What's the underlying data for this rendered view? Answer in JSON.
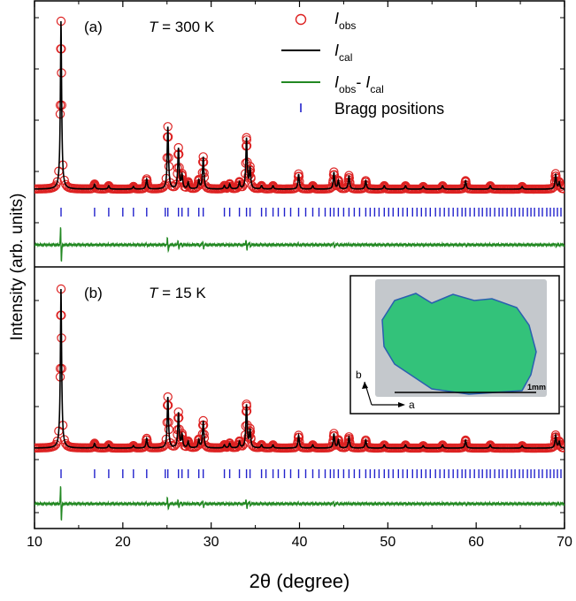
{
  "chart_data": {
    "type": "scatter",
    "xlabel": "2θ (degree)",
    "ylabel": "Intensity (arb. units)",
    "xlim": [
      10,
      70
    ],
    "x_ticks": [
      10,
      20,
      30,
      40,
      50,
      60,
      70
    ],
    "legend": {
      "placement": "top-right, panel (a)",
      "items": [
        {
          "key": "obs",
          "base": "I",
          "sub": "obs",
          "color": "#dd2222"
        },
        {
          "key": "cal",
          "base": "I",
          "sub": "cal",
          "color": "#000000"
        },
        {
          "key": "diff",
          "base": "I",
          "sub": "obs",
          "mid": "- ",
          "base2": "I",
          "sub2": "cal",
          "color": "#228822"
        },
        {
          "key": "bragg",
          "label": "Bragg positions",
          "color": "#2222cc"
        }
      ]
    },
    "panels": [
      {
        "id": "a",
        "tag": "(a)",
        "temp_var": "T",
        "temp_text": " = 300 K",
        "baseline": 1,
        "peaks": [
          [
            13.0,
            100
          ],
          [
            16.8,
            3
          ],
          [
            18.4,
            2
          ],
          [
            21.2,
            1.5
          ],
          [
            22.7,
            6
          ],
          [
            25.1,
            37
          ],
          [
            26.3,
            24
          ],
          [
            26.7,
            8
          ],
          [
            27.4,
            4
          ],
          [
            28.6,
            5
          ],
          [
            29.1,
            19
          ],
          [
            31.5,
            2
          ],
          [
            32.1,
            3
          ],
          [
            33.2,
            4
          ],
          [
            34.0,
            30
          ],
          [
            34.4,
            12
          ],
          [
            35.7,
            2
          ],
          [
            37.0,
            2
          ],
          [
            39.9,
            9
          ],
          [
            41.5,
            2
          ],
          [
            43.9,
            10
          ],
          [
            44.4,
            5
          ],
          [
            45.6,
            8
          ],
          [
            47.5,
            5
          ],
          [
            49.6,
            2
          ],
          [
            52.0,
            2
          ],
          [
            54.0,
            1.5
          ],
          [
            56.2,
            2
          ],
          [
            58.8,
            5
          ],
          [
            61.6,
            2
          ],
          [
            65.2,
            1.5
          ],
          [
            69.0,
            9
          ],
          [
            69.4,
            4
          ]
        ]
      },
      {
        "id": "b",
        "tag": "(b)",
        "temp_var": "T",
        "temp_text": " = 15 K",
        "baseline": 1,
        "peaks": [
          [
            13.0,
            100
          ],
          [
            16.8,
            3
          ],
          [
            18.4,
            2
          ],
          [
            21.2,
            1.5
          ],
          [
            22.7,
            6
          ],
          [
            25.1,
            32
          ],
          [
            26.3,
            22
          ],
          [
            26.7,
            8
          ],
          [
            27.4,
            4
          ],
          [
            28.6,
            5
          ],
          [
            29.1,
            17
          ],
          [
            31.5,
            2
          ],
          [
            32.1,
            3
          ],
          [
            33.2,
            4
          ],
          [
            34.0,
            27
          ],
          [
            34.4,
            11
          ],
          [
            35.7,
            2
          ],
          [
            37.0,
            2
          ],
          [
            39.9,
            8
          ],
          [
            41.5,
            2
          ],
          [
            43.9,
            9
          ],
          [
            44.4,
            5
          ],
          [
            45.6,
            7
          ],
          [
            47.5,
            5
          ],
          [
            49.6,
            2
          ],
          [
            52.0,
            2
          ],
          [
            54.0,
            1.5
          ],
          [
            56.2,
            2
          ],
          [
            58.8,
            5
          ],
          [
            61.6,
            2
          ],
          [
            65.2,
            1.5
          ],
          [
            69.0,
            8
          ],
          [
            69.4,
            4
          ]
        ]
      }
    ],
    "bragg_positions": [
      13.0,
      16.8,
      18.4,
      20.0,
      21.2,
      22.7,
      24.8,
      25.1,
      26.3,
      26.7,
      27.4,
      28.6,
      29.1,
      31.5,
      32.1,
      33.2,
      34.0,
      34.4,
      35.7,
      36.2,
      37.0,
      37.6,
      38.3,
      39.0,
      39.9,
      40.7,
      41.5,
      42.2,
      42.9,
      43.5,
      43.9,
      44.4,
      45.0,
      45.6,
      46.2,
      46.8,
      47.5,
      48.0,
      48.5,
      49.0,
      49.6,
      50.1,
      50.6,
      51.2,
      51.7,
      52.2,
      52.8,
      53.3,
      53.8,
      54.3,
      54.8,
      55.4,
      55.9,
      56.4,
      56.9,
      57.4,
      57.9,
      58.4,
      58.8,
      59.3,
      59.8,
      60.3,
      60.7,
      61.2,
      61.6,
      62.1,
      62.6,
      63.0,
      63.5,
      64.0,
      64.4,
      64.9,
      65.3,
      65.8,
      66.2,
      66.6,
      67.1,
      67.5,
      68.0,
      68.4,
      68.8,
      69.2,
      69.6
    ]
  },
  "inset": {
    "scale_label": "1mm",
    "axis_b": "b",
    "axis_a": "a",
    "crystal_color": "#33c27a",
    "background_color": "#c4c8cc"
  }
}
